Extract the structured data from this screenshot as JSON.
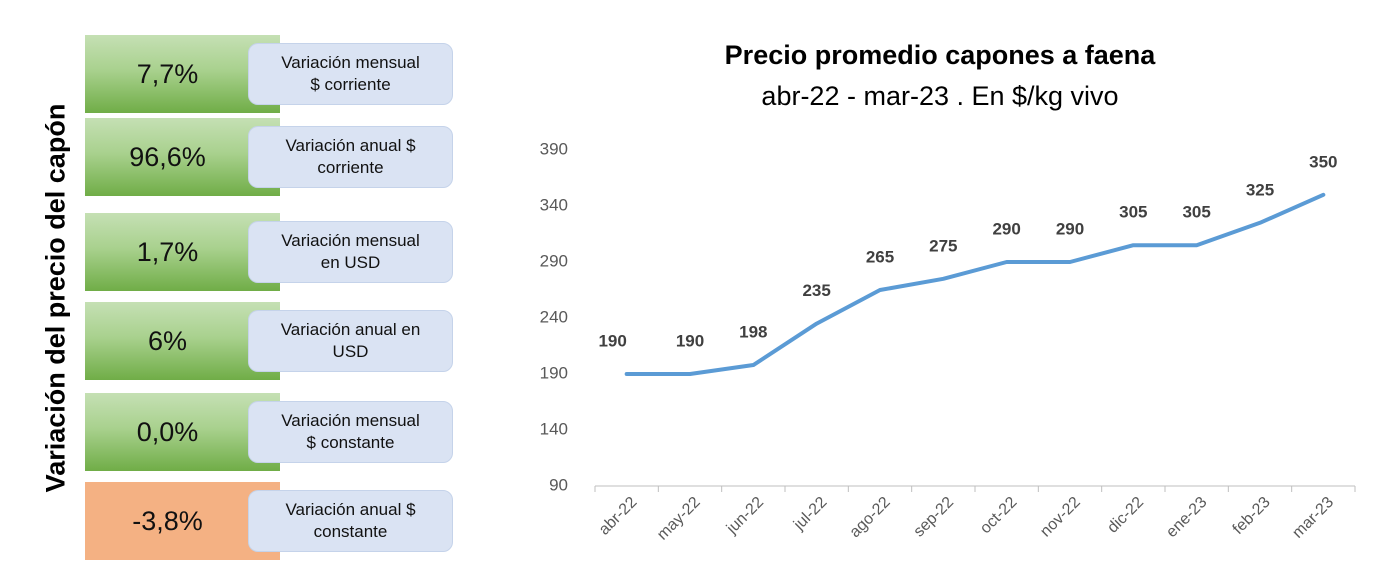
{
  "panel": {
    "title": "Variación del precio del capón",
    "items": [
      {
        "value": "7,7%",
        "label_lines": [
          "Variación mensual",
          "$ corriente"
        ],
        "color": "green"
      },
      {
        "value": "96,6%",
        "label_lines": [
          "Variación anual $",
          "corriente"
        ],
        "color": "green"
      },
      {
        "value": "1,7%",
        "label_lines": [
          "Variación mensual",
          "en USD"
        ],
        "color": "green"
      },
      {
        "value": "6%",
        "label_lines": [
          "Variación anual en",
          "USD"
        ],
        "color": "green"
      },
      {
        "value": "0,0%",
        "label_lines": [
          "Variación mensual",
          "$ constante"
        ],
        "color": "green"
      },
      {
        "value": "-3,8%",
        "label_lines": [
          "Variación anual $",
          "constante"
        ],
        "color": "orange"
      }
    ]
  },
  "chart_data": {
    "type": "line",
    "title": "Precio promedio capones a faena",
    "subtitle": "abr-22 - mar-23 . En $/kg vivo",
    "categories": [
      "abr-22",
      "may-22",
      "jun-22",
      "jul-22",
      "ago-22",
      "sep-22",
      "oct-22",
      "nov-22",
      "dic-22",
      "ene-23",
      "feb-23",
      "mar-23"
    ],
    "values": [
      190,
      190,
      198,
      235,
      265,
      275,
      290,
      290,
      305,
      305,
      325,
      350
    ],
    "color": "#5b9bd5",
    "ylim": [
      90,
      390
    ],
    "yticks": [
      90,
      140,
      190,
      240,
      290,
      340,
      390
    ],
    "grid": false
  }
}
